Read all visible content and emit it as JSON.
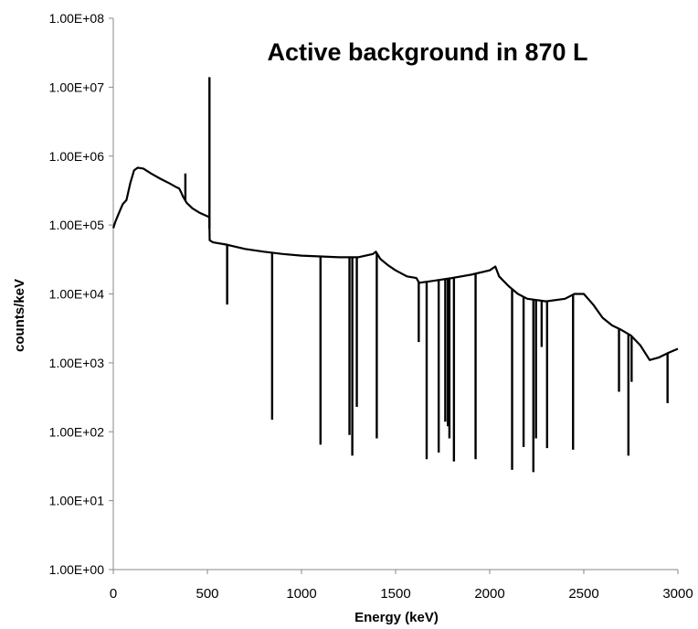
{
  "chart_data": {
    "type": "line",
    "title": "Active background in 870 L",
    "xlabel": "Energy (keV)",
    "ylabel": "counts/keV",
    "xlim": [
      0,
      3000
    ],
    "ylim": [
      1,
      100000000
    ],
    "yscale": "log",
    "grid": false,
    "legend": "none",
    "line_color": "#000000",
    "x_ticks": [
      "0",
      "500",
      "1000",
      "1500",
      "2000",
      "2500",
      "3000"
    ],
    "y_ticks": [
      "1.00E+00",
      "1.00E+01",
      "1.00E+02",
      "1.00E+03",
      "1.00E+04",
      "1.00E+05",
      "1.00E+06",
      "1.00E+07",
      "1.00E+08"
    ],
    "continuum": [
      [
        0,
        90000
      ],
      [
        10,
        110000
      ],
      [
        30,
        150000
      ],
      [
        50,
        200000
      ],
      [
        70,
        230000
      ],
      [
        90,
        400000
      ],
      [
        110,
        620000
      ],
      [
        130,
        680000
      ],
      [
        160,
        660000
      ],
      [
        200,
        560000
      ],
      [
        250,
        470000
      ],
      [
        300,
        400000
      ],
      [
        330,
        360000
      ],
      [
        350,
        340000
      ],
      [
        360,
        300000
      ],
      [
        370,
        260000
      ],
      [
        390,
        210000
      ],
      [
        420,
        175000
      ],
      [
        460,
        150000
      ],
      [
        510,
        130000
      ],
      [
        512,
        60000
      ],
      [
        530,
        56000
      ],
      [
        600,
        52000
      ],
      [
        700,
        45000
      ],
      [
        800,
        41000
      ],
      [
        900,
        38000
      ],
      [
        1000,
        36000
      ],
      [
        1100,
        35000
      ],
      [
        1200,
        34000
      ],
      [
        1300,
        34000
      ],
      [
        1380,
        38000
      ],
      [
        1395,
        41000
      ],
      [
        1420,
        32000
      ],
      [
        1460,
        26000
      ],
      [
        1500,
        22000
      ],
      [
        1560,
        18000
      ],
      [
        1610,
        17000
      ],
      [
        1625,
        14500
      ],
      [
        1700,
        15500
      ],
      [
        1800,
        17000
      ],
      [
        1900,
        19000
      ],
      [
        2000,
        22000
      ],
      [
        2030,
        25000
      ],
      [
        2050,
        18000
      ],
      [
        2100,
        13000
      ],
      [
        2150,
        10000
      ],
      [
        2200,
        8500
      ],
      [
        2300,
        7800
      ],
      [
        2400,
        8500
      ],
      [
        2450,
        10000
      ],
      [
        2500,
        10000
      ],
      [
        2550,
        7000
      ],
      [
        2600,
        4500
      ],
      [
        2650,
        3500
      ],
      [
        2700,
        3000
      ],
      [
        2750,
        2500
      ],
      [
        2800,
        1800
      ],
      [
        2850,
        1100
      ],
      [
        2900,
        1200
      ],
      [
        2950,
        1400
      ],
      [
        3000,
        1600
      ]
    ],
    "peaks": [
      {
        "x": 511,
        "y": 14000000
      },
      {
        "x": 383,
        "y": 560000
      },
      {
        "x": 605,
        "y": 7000
      },
      {
        "x": 844,
        "y": 150
      },
      {
        "x": 1101,
        "y": 65
      },
      {
        "x": 1255,
        "y": 90
      },
      {
        "x": 1270,
        "y": 45
      },
      {
        "x": 1294,
        "y": 230
      },
      {
        "x": 1400,
        "y": 80
      },
      {
        "x": 1623,
        "y": 2000
      },
      {
        "x": 1665,
        "y": 40
      },
      {
        "x": 1729,
        "y": 50
      },
      {
        "x": 1764,
        "y": 140
      },
      {
        "x": 1778,
        "y": 120
      },
      {
        "x": 1786,
        "y": 80
      },
      {
        "x": 1810,
        "y": 37
      },
      {
        "x": 1925,
        "y": 40
      },
      {
        "x": 2119,
        "y": 28
      },
      {
        "x": 2180,
        "y": 60
      },
      {
        "x": 2232,
        "y": 26
      },
      {
        "x": 2246,
        "y": 80
      },
      {
        "x": 2276,
        "y": 1700
      },
      {
        "x": 2305,
        "y": 58
      },
      {
        "x": 2443,
        "y": 55
      },
      {
        "x": 2687,
        "y": 380
      },
      {
        "x": 2737,
        "y": 45
      },
      {
        "x": 2754,
        "y": 530
      },
      {
        "x": 2945,
        "y": 260
      }
    ]
  }
}
